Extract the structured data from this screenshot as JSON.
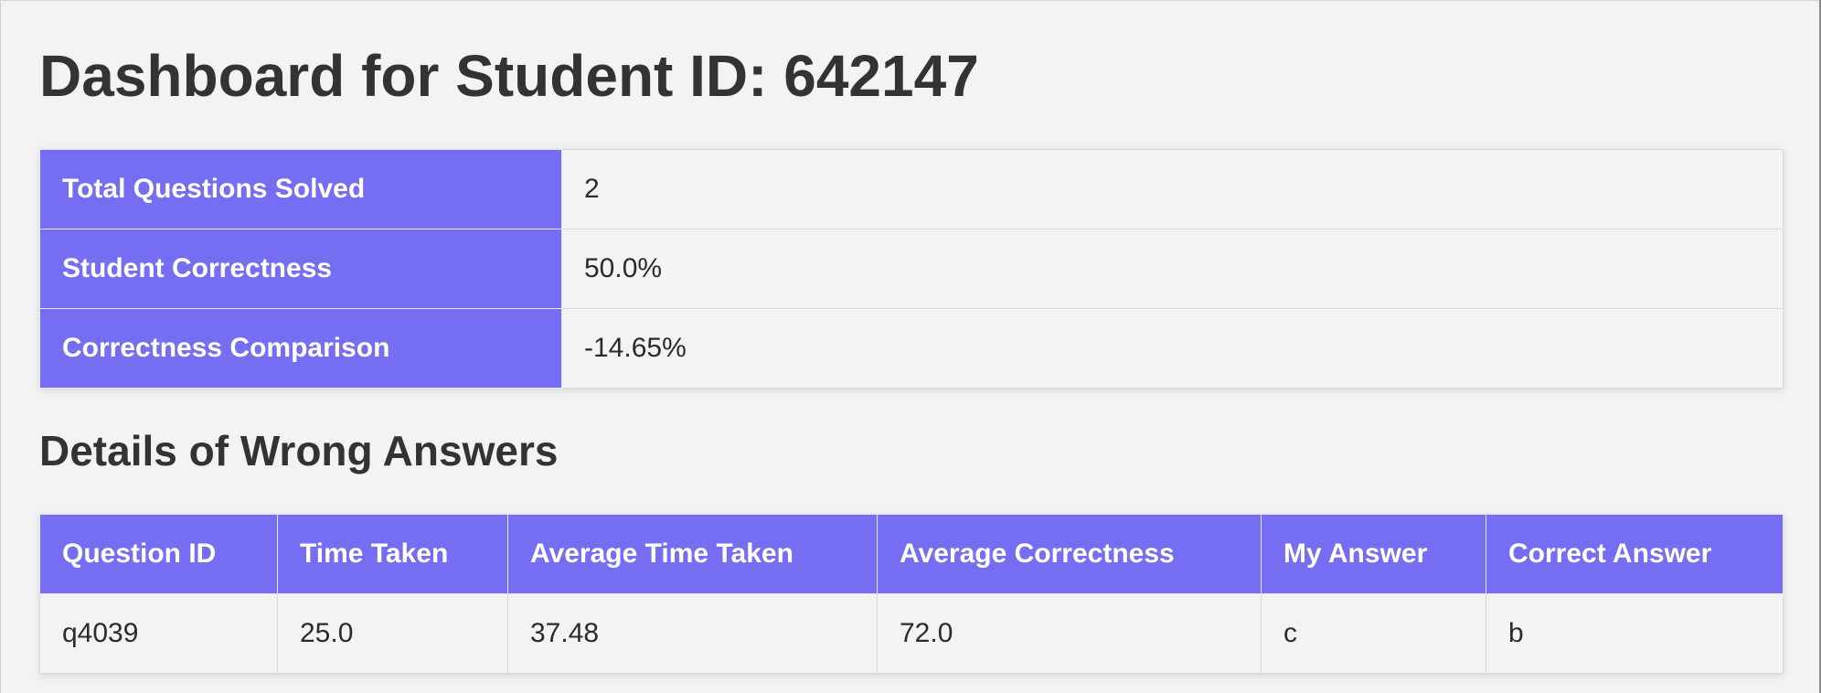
{
  "page": {
    "title": "Dashboard for Student ID: 642147",
    "details_heading": "Details of Wrong Answers"
  },
  "summary": {
    "rows": [
      {
        "label": "Total Questions Solved",
        "value": "2"
      },
      {
        "label": "Student Correctness",
        "value": "50.0%"
      },
      {
        "label": "Correctness Comparison",
        "value": "-14.65%"
      }
    ]
  },
  "details": {
    "columns": [
      "Question ID",
      "Time Taken",
      "Average Time Taken",
      "Average Correctness",
      "My Answer",
      "Correct Answer"
    ],
    "rows": [
      [
        "q4039",
        "25.0",
        "37.48",
        "72.0",
        "c",
        "b"
      ]
    ]
  },
  "colors": {
    "header_bg": "#756ef3",
    "page_bg": "#f3f3f3",
    "text": "#333333"
  }
}
